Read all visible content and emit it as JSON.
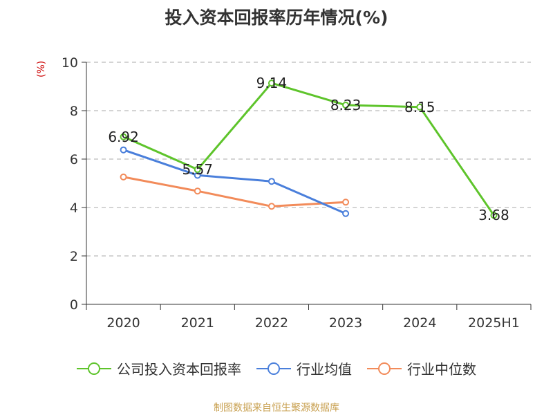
{
  "chart_data": {
    "type": "line",
    "title": "投入资本回报率历年情况(%)",
    "ylabel": "(%)",
    "xlabel": "",
    "categories": [
      "2020",
      "2021",
      "2022",
      "2023",
      "2024",
      "2025H1"
    ],
    "ylim": [
      0,
      10
    ],
    "yticks": [
      0,
      2,
      4,
      6,
      8,
      10
    ],
    "grid": true,
    "legend_position": "bottom",
    "series": [
      {
        "name": "公司投入资本回报率",
        "color": "#5ec42b",
        "values": [
          6.92,
          5.57,
          9.14,
          8.23,
          8.15,
          3.68
        ],
        "labels": [
          "6.92",
          "5.57",
          "9.14",
          "8.23",
          "8.15",
          "3.68"
        ]
      },
      {
        "name": "行业均值",
        "color": "#4a7fdb",
        "values": [
          6.38,
          5.33,
          5.08,
          3.75,
          null,
          null
        ]
      },
      {
        "name": "行业中位数",
        "color": "#f28b5a",
        "values": [
          5.26,
          4.68,
          4.05,
          4.22,
          null,
          null
        ]
      }
    ]
  },
  "source_text": "制图数据来自恒生聚源数据库"
}
